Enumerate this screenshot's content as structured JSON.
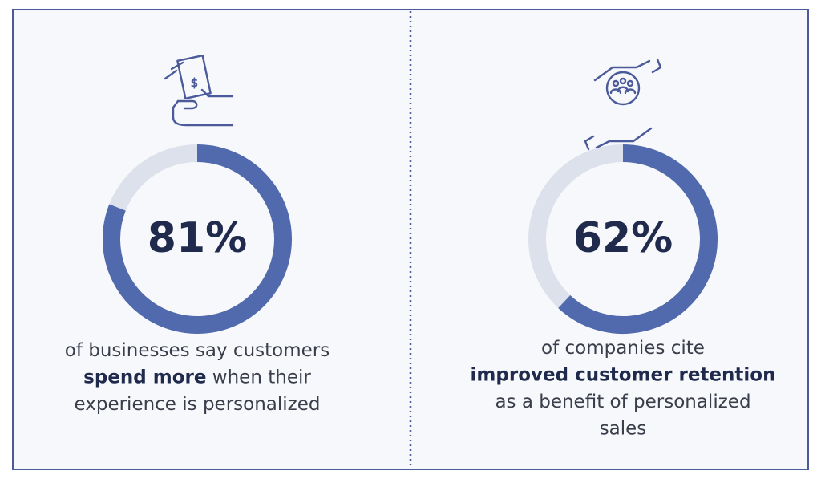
{
  "chart_data": [
    {
      "type": "donut",
      "values": [
        81
      ],
      "value_labels": [
        "81%"
      ],
      "ylim": [
        0,
        100
      ],
      "color": "#5169ad",
      "track_color": "#dde1ec",
      "caption": [
        [
          {
            "text": "of businesses say customers"
          }
        ],
        [
          {
            "text": "spend more",
            "bold": true
          },
          {
            "text": " when their"
          }
        ],
        [
          {
            "text": "experience is personalized"
          }
        ]
      ]
    },
    {
      "type": "donut",
      "values": [
        62
      ],
      "value_labels": [
        "62%"
      ],
      "ylim": [
        0,
        100
      ],
      "color": "#5169ad",
      "track_color": "#dde1ec",
      "caption": [
        [
          {
            "text": "of companies cite"
          }
        ],
        [
          {
            "text": "improved customer retention",
            "bold": true
          }
        ],
        [
          {
            "text": "as a benefit of personalized"
          }
        ],
        [
          {
            "text": "sales"
          }
        ]
      ]
    }
  ]
}
